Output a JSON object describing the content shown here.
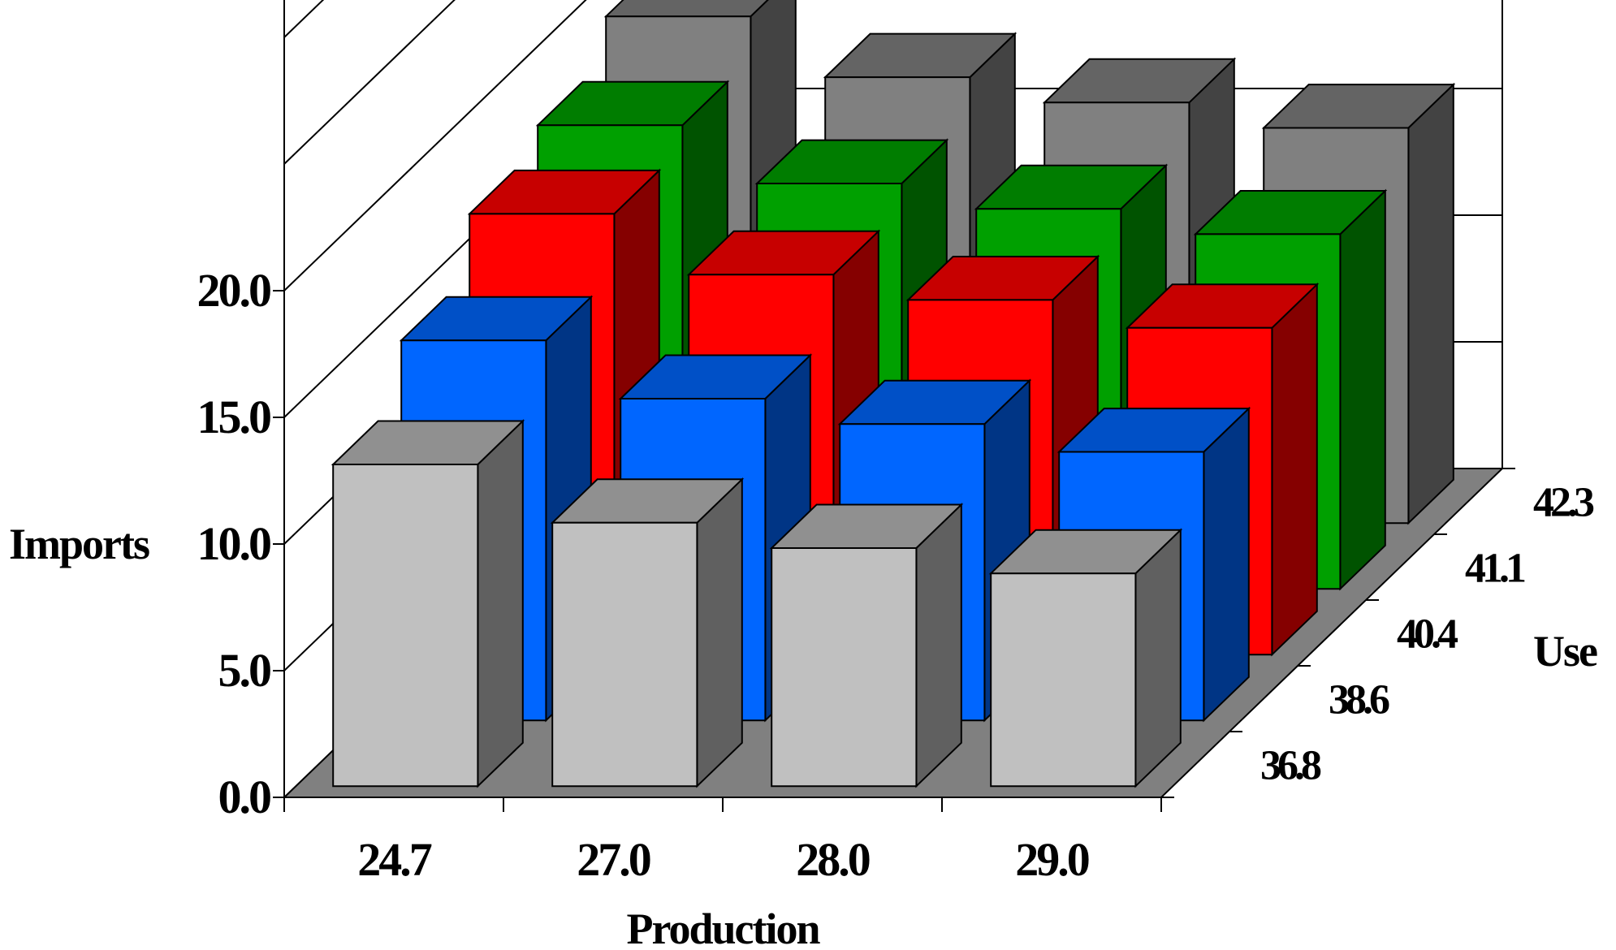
{
  "chart_data": {
    "type": "bar",
    "subtype": "3d-column",
    "title": "",
    "ylabel": "Imports",
    "xlabel": "Production",
    "zlabel": "Use",
    "ylim": [
      0,
      20
    ],
    "yticks": [
      "0.0",
      "5.0",
      "10.0",
      "15.0",
      "20.0"
    ],
    "categories": [
      "24.7",
      "27.0",
      "28.0",
      "29.0"
    ],
    "series": [
      {
        "name": "36.8",
        "color": "#c0c0c0",
        "values": [
          12.7,
          10.4,
          9.4,
          8.4
        ]
      },
      {
        "name": "38.6",
        "color": "#0066ff",
        "values": [
          15.0,
          12.7,
          11.7,
          10.6
        ]
      },
      {
        "name": "40.4",
        "color": "#ff0000",
        "values": [
          17.4,
          15.0,
          14.0,
          12.9
        ]
      },
      {
        "name": "41.1",
        "color": "#00a000",
        "values": [
          18.3,
          16.0,
          15.0,
          14.0
        ]
      },
      {
        "name": "42.3",
        "color": "#808080",
        "values": [
          20.0,
          17.6,
          16.6,
          15.6
        ]
      }
    ],
    "grid": true,
    "legend": "none"
  }
}
